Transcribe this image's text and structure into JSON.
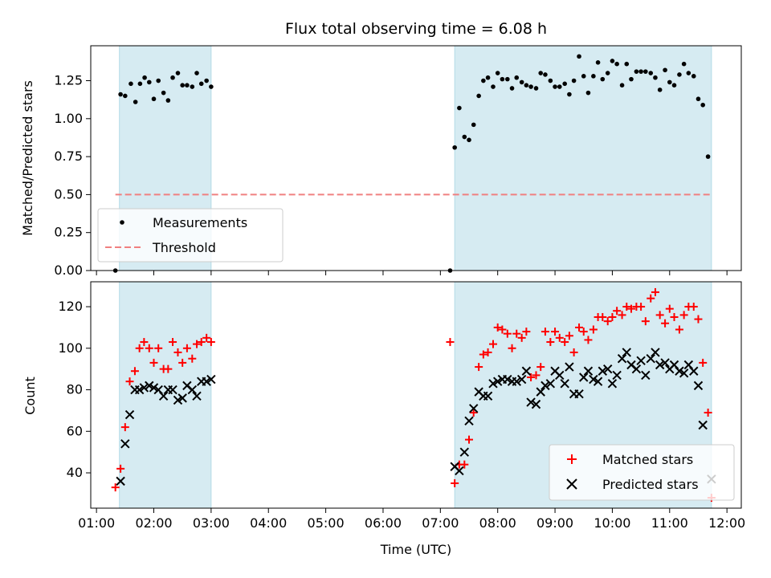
{
  "chart_data": [
    {
      "type": "scatter",
      "title": "Flux total observing time = 6.08 h",
      "ylabel": "Matched/Predicted stars",
      "xlabel": "",
      "xlim": [
        0.9,
        12.25
      ],
      "ylim": [
        0.0,
        1.48
      ],
      "yticks": [
        "0.00",
        "0.25",
        "0.50",
        "0.75",
        "1.00",
        "1.25"
      ],
      "grid": false,
      "legend": "lower-left",
      "shaded_intervals": [
        [
          1.4,
          3.0
        ],
        [
          7.25,
          11.73
        ]
      ],
      "threshold": {
        "name": "Threshold",
        "value": 0.5,
        "x_range": [
          1.33,
          11.73
        ],
        "color": "#f08080"
      },
      "series": [
        {
          "name": "Measurements",
          "color": "#000000",
          "points": [
            [
              1.33,
              0.0
            ],
            [
              1.42,
              1.16
            ],
            [
              1.5,
              1.15
            ],
            [
              1.6,
              1.23
            ],
            [
              1.68,
              1.11
            ],
            [
              1.76,
              1.23
            ],
            [
              1.84,
              1.27
            ],
            [
              1.92,
              1.24
            ],
            [
              2.0,
              1.13
            ],
            [
              2.08,
              1.25
            ],
            [
              2.17,
              1.17
            ],
            [
              2.25,
              1.12
            ],
            [
              2.33,
              1.27
            ],
            [
              2.42,
              1.3
            ],
            [
              2.5,
              1.22
            ],
            [
              2.58,
              1.22
            ],
            [
              2.67,
              1.21
            ],
            [
              2.75,
              1.3
            ],
            [
              2.83,
              1.23
            ],
            [
              2.92,
              1.25
            ],
            [
              3.0,
              1.21
            ],
            [
              7.17,
              0.0
            ],
            [
              7.25,
              0.81
            ],
            [
              7.33,
              1.07
            ],
            [
              7.42,
              0.88
            ],
            [
              7.5,
              0.86
            ],
            [
              7.58,
              0.96
            ],
            [
              7.67,
              1.15
            ],
            [
              7.75,
              1.25
            ],
            [
              7.83,
              1.27
            ],
            [
              7.92,
              1.21
            ],
            [
              8.0,
              1.3
            ],
            [
              8.08,
              1.26
            ],
            [
              8.17,
              1.26
            ],
            [
              8.25,
              1.2
            ],
            [
              8.33,
              1.27
            ],
            [
              8.42,
              1.24
            ],
            [
              8.5,
              1.22
            ],
            [
              8.58,
              1.21
            ],
            [
              8.67,
              1.2
            ],
            [
              8.75,
              1.3
            ],
            [
              8.83,
              1.29
            ],
            [
              8.92,
              1.25
            ],
            [
              9.0,
              1.21
            ],
            [
              9.08,
              1.21
            ],
            [
              9.17,
              1.23
            ],
            [
              9.25,
              1.16
            ],
            [
              9.33,
              1.25
            ],
            [
              9.42,
              1.41
            ],
            [
              9.5,
              1.28
            ],
            [
              9.58,
              1.17
            ],
            [
              9.67,
              1.28
            ],
            [
              9.75,
              1.37
            ],
            [
              9.83,
              1.26
            ],
            [
              9.92,
              1.3
            ],
            [
              10.0,
              1.38
            ],
            [
              10.08,
              1.36
            ],
            [
              10.17,
              1.22
            ],
            [
              10.25,
              1.36
            ],
            [
              10.33,
              1.26
            ],
            [
              10.42,
              1.31
            ],
            [
              10.5,
              1.31
            ],
            [
              10.58,
              1.31
            ],
            [
              10.67,
              1.3
            ],
            [
              10.75,
              1.27
            ],
            [
              10.83,
              1.19
            ],
            [
              10.92,
              1.32
            ],
            [
              11.0,
              1.24
            ],
            [
              11.08,
              1.22
            ],
            [
              11.17,
              1.29
            ],
            [
              11.25,
              1.36
            ],
            [
              11.33,
              1.3
            ],
            [
              11.42,
              1.28
            ],
            [
              11.5,
              1.13
            ],
            [
              11.58,
              1.09
            ],
            [
              11.67,
              0.75
            ]
          ]
        }
      ]
    },
    {
      "type": "scatter",
      "title": "",
      "ylabel": "Count",
      "xlabel": "Time (UTC)",
      "xlim": [
        0.9,
        12.25
      ],
      "ylim": [
        23,
        132
      ],
      "xticks": [
        "01:00",
        "02:00",
        "03:00",
        "04:00",
        "05:00",
        "06:00",
        "07:00",
        "08:00",
        "09:00",
        "10:00",
        "11:00",
        "12:00"
      ],
      "yticks": [
        "40",
        "60",
        "80",
        "100",
        "120"
      ],
      "grid": false,
      "legend": "lower-right",
      "shaded_intervals": [
        [
          1.4,
          3.0
        ],
        [
          7.25,
          11.73
        ]
      ],
      "series": [
        {
          "name": "Matched stars",
          "color": "#ff0000",
          "marker": "plus",
          "points": [
            [
              1.33,
              33
            ],
            [
              1.42,
              42
            ],
            [
              1.5,
              62
            ],
            [
              1.58,
              84
            ],
            [
              1.67,
              89
            ],
            [
              1.75,
              100
            ],
            [
              1.83,
              103
            ],
            [
              1.92,
              100
            ],
            [
              2.0,
              93
            ],
            [
              2.08,
              100
            ],
            [
              2.17,
              90
            ],
            [
              2.25,
              90
            ],
            [
              2.33,
              103
            ],
            [
              2.42,
              98
            ],
            [
              2.5,
              93
            ],
            [
              2.58,
              100
            ],
            [
              2.67,
              95
            ],
            [
              2.75,
              102
            ],
            [
              2.83,
              103
            ],
            [
              2.92,
              105
            ],
            [
              3.0,
              103
            ],
            [
              7.17,
              103
            ],
            [
              7.25,
              35
            ],
            [
              7.33,
              44
            ],
            [
              7.42,
              44
            ],
            [
              7.5,
              56
            ],
            [
              7.58,
              69
            ],
            [
              7.67,
              91
            ],
            [
              7.75,
              97
            ],
            [
              7.83,
              98
            ],
            [
              7.92,
              102
            ],
            [
              8.0,
              110
            ],
            [
              8.08,
              109
            ],
            [
              8.17,
              107
            ],
            [
              8.25,
              100
            ],
            [
              8.33,
              107
            ],
            [
              8.42,
              105
            ],
            [
              8.5,
              108
            ],
            [
              8.58,
              86
            ],
            [
              8.67,
              87
            ],
            [
              8.75,
              91
            ],
            [
              8.83,
              108
            ],
            [
              8.92,
              103
            ],
            [
              9.0,
              108
            ],
            [
              9.08,
              105
            ],
            [
              9.17,
              103
            ],
            [
              9.25,
              106
            ],
            [
              9.33,
              98
            ],
            [
              9.42,
              110
            ],
            [
              9.5,
              108
            ],
            [
              9.58,
              104
            ],
            [
              9.67,
              109
            ],
            [
              9.75,
              115
            ],
            [
              9.83,
              115
            ],
            [
              9.92,
              113
            ],
            [
              10.0,
              115
            ],
            [
              10.08,
              118
            ],
            [
              10.17,
              116
            ],
            [
              10.25,
              120
            ],
            [
              10.33,
              119
            ],
            [
              10.42,
              120
            ],
            [
              10.5,
              120
            ],
            [
              10.58,
              113
            ],
            [
              10.67,
              124
            ],
            [
              10.75,
              127
            ],
            [
              10.83,
              116
            ],
            [
              10.92,
              112
            ],
            [
              11.0,
              119
            ],
            [
              11.08,
              115
            ],
            [
              11.17,
              109
            ],
            [
              11.25,
              116
            ],
            [
              11.33,
              120
            ],
            [
              11.42,
              120
            ],
            [
              11.5,
              114
            ],
            [
              11.58,
              93
            ],
            [
              11.67,
              69
            ],
            [
              11.73,
              28
            ]
          ]
        },
        {
          "name": "Predicted stars",
          "color": "#000000",
          "marker": "x",
          "points": [
            [
              1.42,
              36
            ],
            [
              1.5,
              54
            ],
            [
              1.58,
              68
            ],
            [
              1.67,
              80
            ],
            [
              1.75,
              80
            ],
            [
              1.83,
              81
            ],
            [
              1.92,
              82
            ],
            [
              2.0,
              81
            ],
            [
              2.08,
              80
            ],
            [
              2.17,
              77
            ],
            [
              2.25,
              80
            ],
            [
              2.33,
              80
            ],
            [
              2.42,
              75
            ],
            [
              2.5,
              76
            ],
            [
              2.58,
              82
            ],
            [
              2.67,
              80
            ],
            [
              2.75,
              77
            ],
            [
              2.83,
              84
            ],
            [
              2.92,
              84
            ],
            [
              3.0,
              85
            ],
            [
              7.25,
              43
            ],
            [
              7.33,
              41
            ],
            [
              7.42,
              50
            ],
            [
              7.5,
              65
            ],
            [
              7.58,
              71
            ],
            [
              7.67,
              79
            ],
            [
              7.75,
              77
            ],
            [
              7.83,
              77
            ],
            [
              7.92,
              83
            ],
            [
              8.0,
              84
            ],
            [
              8.08,
              85
            ],
            [
              8.17,
              85
            ],
            [
              8.25,
              84
            ],
            [
              8.33,
              84
            ],
            [
              8.42,
              85
            ],
            [
              8.5,
              89
            ],
            [
              8.58,
              74
            ],
            [
              8.67,
              73
            ],
            [
              8.75,
              79
            ],
            [
              8.83,
              82
            ],
            [
              8.92,
              83
            ],
            [
              9.0,
              89
            ],
            [
              9.08,
              87
            ],
            [
              9.17,
              83
            ],
            [
              9.25,
              91
            ],
            [
              9.33,
              78
            ],
            [
              9.42,
              78
            ],
            [
              9.5,
              86
            ],
            [
              9.58,
              89
            ],
            [
              9.67,
              85
            ],
            [
              9.75,
              84
            ],
            [
              9.83,
              89
            ],
            [
              9.92,
              90
            ],
            [
              10.0,
              83
            ],
            [
              10.08,
              87
            ],
            [
              10.17,
              95
            ],
            [
              10.25,
              98
            ],
            [
              10.33,
              92
            ],
            [
              10.42,
              90
            ],
            [
              10.5,
              94
            ],
            [
              10.58,
              87
            ],
            [
              10.67,
              95
            ],
            [
              10.75,
              98
            ],
            [
              10.83,
              92
            ],
            [
              10.92,
              93
            ],
            [
              11.0,
              90
            ],
            [
              11.08,
              92
            ],
            [
              11.17,
              89
            ],
            [
              11.25,
              88
            ],
            [
              11.33,
              92
            ],
            [
              11.42,
              89
            ],
            [
              11.5,
              82
            ],
            [
              11.58,
              63
            ],
            [
              11.73,
              37
            ]
          ]
        }
      ]
    }
  ]
}
